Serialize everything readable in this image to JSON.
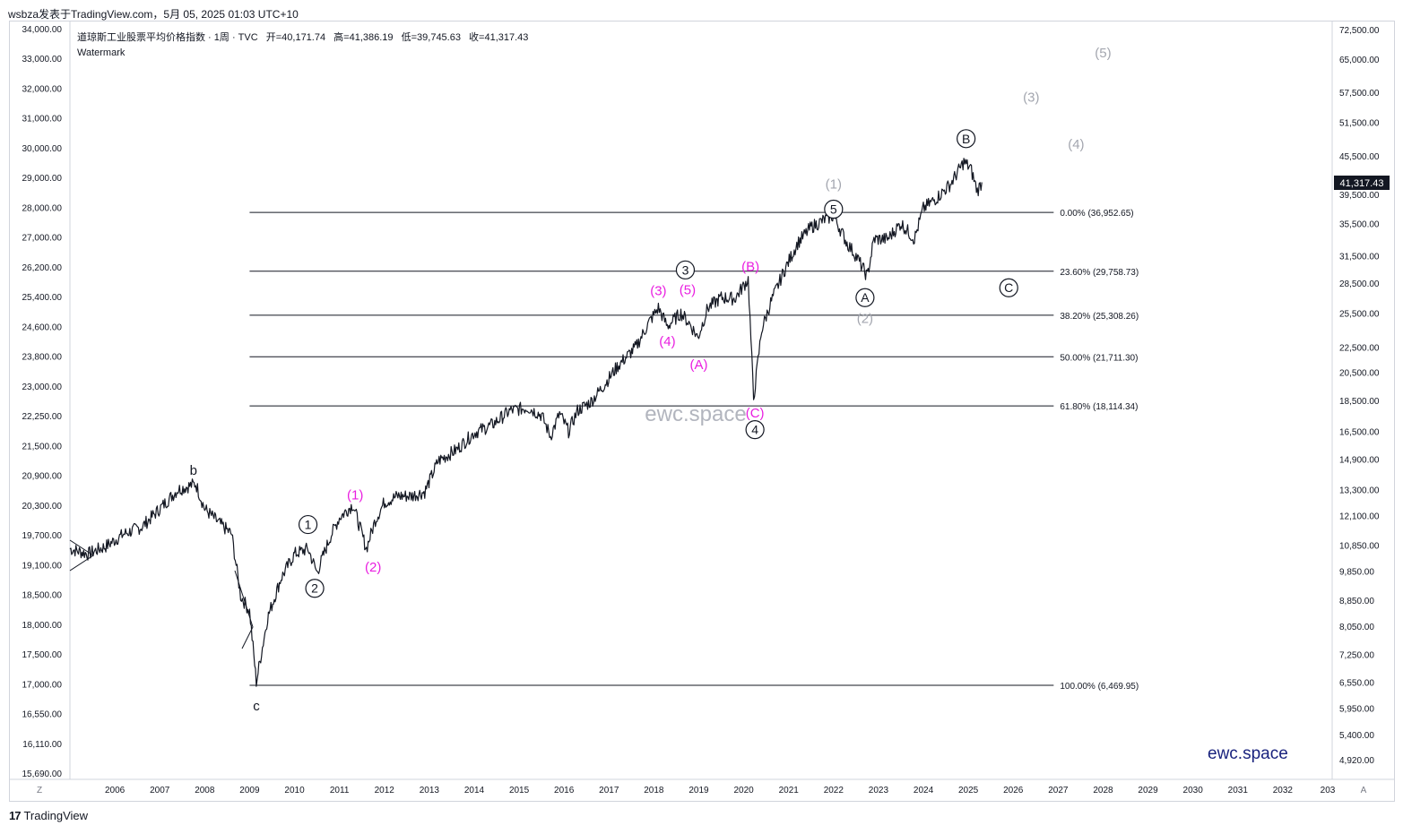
{
  "header": {
    "publisher_line": "wsbza发表于TradingView.com，5月 05, 2025 01:03 UTC+10"
  },
  "legend": {
    "symbol": "道琼斯工业股票平均价格指数 · 1周 · TVC",
    "open": "开=40,171.74",
    "high": "高=41,386.19",
    "low": "低=39,745.63",
    "close": "收=41,317.43",
    "indicator": "Watermark"
  },
  "watermark_center": "ewc.space",
  "watermark_corner": "ewc.space",
  "footer": {
    "logo_glyph": "17",
    "brand": "TradingView"
  },
  "axis_buttons": {
    "left": "Z",
    "right": "A"
  },
  "colors": {
    "price_line": "#131722",
    "wave_magenta": "#e91ee0",
    "wave_gray": "#a3a6af",
    "wave_black": "#131722",
    "price_badge": "#131722",
    "brand": "#1a237e"
  },
  "chart_data": {
    "type": "line",
    "scale": "log",
    "x_axis": {
      "labels": [
        "2006",
        "2007",
        "2008",
        "2009",
        "2010",
        "2011",
        "2012",
        "2013",
        "2014",
        "2015",
        "2016",
        "2017",
        "2018",
        "2019",
        "2020",
        "2021",
        "2022",
        "2023",
        "2024",
        "2025",
        "2026",
        "2027",
        "2028",
        "2029",
        "2030",
        "2031",
        "2032",
        "203"
      ],
      "range": [
        2005.0,
        2033.1
      ]
    },
    "left_axis": {
      "labels": [
        "34,000.00",
        "33,000.00",
        "32,000.00",
        "31,000.00",
        "30,000.00",
        "29,000.00",
        "28,000.00",
        "27,000.00",
        "26,200.00",
        "25,400.00",
        "24,600.00",
        "23,800.00",
        "23,000.00",
        "22,250.00",
        "21,500.00",
        "20,900.00",
        "20,300.00",
        "19,700.00",
        "19,100.00",
        "18,500.00",
        "18,000.00",
        "17,500.00",
        "17,000.00",
        "16,550.00",
        "16,110.00",
        "15,690.00"
      ]
    },
    "right_axis": {
      "labels": [
        "72,500.00",
        "65,000.00",
        "57,500.00",
        "51,500.00",
        "45,500.00",
        "39,500.00",
        "35,500.00",
        "31,500.00",
        "28,500.00",
        "25,500.00",
        "22,500.00",
        "20,500.00",
        "18,500.00",
        "16,500.00",
        "14,900.00",
        "13,300.00",
        "12,100.00",
        "10,850.00",
        "9,850.00",
        "8,850.00",
        "8,050.00",
        "7,250.00",
        "6,550.00",
        "5,950.00",
        "5,400.00",
        "4,920.00"
      ],
      "values": [
        72500,
        65000,
        57500,
        51500,
        45500,
        39500,
        35500,
        31500,
        28500,
        25500,
        22500,
        20500,
        18500,
        16500,
        14900,
        13300,
        12100,
        10850,
        9850,
        8850,
        8050,
        7250,
        6550,
        5950,
        5400,
        4920
      ]
    },
    "current_price_label": "41,317.43",
    "current_price": 41317.43,
    "series": [
      {
        "x": [
          2005.0,
          2005.4,
          2005.8,
          2006.2,
          2006.6,
          2007.0,
          2007.4,
          2007.8,
          2008.0,
          2008.3,
          2008.6,
          2008.8,
          2009.0,
          2009.15,
          2009.4,
          2009.7,
          2010.0,
          2010.3,
          2010.5,
          2010.8,
          2011.0,
          2011.3,
          2011.6,
          2011.8,
          2012.0,
          2012.3,
          2012.6,
          2012.9,
          2013.2,
          2013.6,
          2014.0,
          2014.4,
          2014.8,
          2015.2,
          2015.5,
          2015.7,
          2015.9,
          2016.1,
          2016.3,
          2016.6,
          2016.9,
          2017.2,
          2017.6,
          2017.9,
          2018.1,
          2018.3,
          2018.6,
          2018.8,
          2018.98,
          2019.2,
          2019.5,
          2019.8,
          2020.1,
          2020.22,
          2020.4,
          2020.6,
          2020.9,
          2021.2,
          2021.5,
          2021.8,
          2022.0,
          2022.3,
          2022.5,
          2022.75,
          2022.9,
          2023.2,
          2023.5,
          2023.8,
          2024.0,
          2024.3,
          2024.6,
          2024.9,
          2025.05,
          2025.2,
          2025.3
        ],
        "y": [
          10700,
          10500,
          10800,
          11300,
          11600,
          12400,
          13300,
          13600,
          12400,
          11800,
          11300,
          9000,
          8500,
          6550,
          8300,
          9600,
          10500,
          10700,
          9800,
          11200,
          12000,
          12600,
          10700,
          11900,
          12700,
          13000,
          13000,
          13200,
          14800,
          15400,
          16400,
          16900,
          17800,
          18000,
          17500,
          16200,
          17600,
          16500,
          17800,
          18400,
          19600,
          21000,
          22500,
          24700,
          26000,
          24300,
          25500,
          24500,
          23300,
          26000,
          27000,
          26900,
          28900,
          18600,
          24000,
          26500,
          29800,
          33000,
          35000,
          36000,
          36500,
          33000,
          31500,
          29200,
          33500,
          33500,
          35500,
          33500,
          37500,
          39000,
          41000,
          44500,
          43500,
          40000,
          41300
        ],
        "color": "#131722"
      }
    ],
    "fib_levels": [
      {
        "label": "0.00% (36,952.65)",
        "value": 36952.65
      },
      {
        "label": "23.60% (29,758.73)",
        "value": 29758.73
      },
      {
        "label": "38.20% (25,308.26)",
        "value": 25308.26
      },
      {
        "label": "50.00% (21,711.30)",
        "value": 21711.3
      },
      {
        "label": "61.80% (18,114.34)",
        "value": 18114.34
      },
      {
        "label": "100.00% (6,469.95)",
        "value": 6469.95
      }
    ],
    "fib_x_range": [
      2009.0,
      2026.9
    ],
    "wave_labels": [
      {
        "text": "b",
        "x": 2007.75,
        "y": 14300,
        "style": "plain",
        "color": "black"
      },
      {
        "text": "c",
        "x": 2009.15,
        "y": 6000,
        "style": "plain",
        "color": "black"
      },
      {
        "text": "1",
        "x": 2010.3,
        "y": 11700,
        "style": "circle",
        "color": "black"
      },
      {
        "text": "2",
        "x": 2010.45,
        "y": 9250,
        "style": "circle",
        "color": "black"
      },
      {
        "text": "(1)",
        "x": 2011.35,
        "y": 13050,
        "style": "plain",
        "color": "magenta"
      },
      {
        "text": "(2)",
        "x": 2011.75,
        "y": 10000,
        "style": "plain",
        "color": "magenta"
      },
      {
        "text": "(3)",
        "x": 2018.1,
        "y": 27700,
        "style": "plain",
        "color": "magenta"
      },
      {
        "text": "(4)",
        "x": 2018.3,
        "y": 23000,
        "style": "plain",
        "color": "magenta"
      },
      {
        "text": "(5)",
        "x": 2018.75,
        "y": 27800,
        "style": "plain",
        "color": "magenta"
      },
      {
        "text": "3",
        "x": 2018.7,
        "y": 29900,
        "style": "circle",
        "color": "black"
      },
      {
        "text": "(A)",
        "x": 2019.0,
        "y": 21100,
        "style": "plain",
        "color": "magenta"
      },
      {
        "text": "(B)",
        "x": 2020.15,
        "y": 30300,
        "style": "plain",
        "color": "magenta"
      },
      {
        "text": "(C)",
        "x": 2020.25,
        "y": 17650,
        "style": "plain",
        "color": "magenta"
      },
      {
        "text": "4",
        "x": 2020.25,
        "y": 16600,
        "style": "circle",
        "color": "black"
      },
      {
        "text": "(1)",
        "x": 2022.0,
        "y": 41000,
        "style": "plain",
        "color": "gray"
      },
      {
        "text": "5",
        "x": 2022.0,
        "y": 37400,
        "style": "circle",
        "color": "black"
      },
      {
        "text": "A",
        "x": 2022.7,
        "y": 27000,
        "style": "circle",
        "color": "black"
      },
      {
        "text": "(2)",
        "x": 2022.7,
        "y": 25000,
        "style": "plain",
        "color": "gray"
      },
      {
        "text": "B",
        "x": 2024.95,
        "y": 48500,
        "style": "circle",
        "color": "black"
      },
      {
        "text": "C",
        "x": 2025.9,
        "y": 28000,
        "style": "circle",
        "color": "black"
      },
      {
        "text": "(3)",
        "x": 2026.4,
        "y": 56500,
        "style": "plain",
        "color": "gray"
      },
      {
        "text": "(4)",
        "x": 2027.4,
        "y": 47500,
        "style": "plain",
        "color": "gray"
      },
      {
        "text": "(5)",
        "x": 2028.0,
        "y": 66500,
        "style": "plain",
        "color": "gray"
      }
    ]
  }
}
